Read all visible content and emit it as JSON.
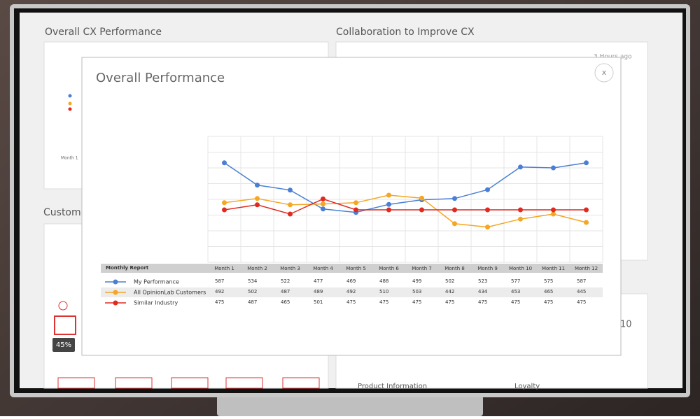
{
  "dashboard": {
    "panel_1_title": "Overall CX Performance",
    "panel_2_title": "Collaboration to Improve CX",
    "panel_3_title": "Custome",
    "mini_month": "Month 1",
    "time_ago": "3 Hours ago",
    "badge": "45%",
    "panel_4_number": "10",
    "panel_5_title": "Product Information",
    "panel_6_title": "Loyalty",
    "close": "x"
  },
  "chart_data": {
    "type": "line",
    "title": "Overall Performance",
    "table_header": "Monthly Report",
    "categories": [
      "Month 1",
      "Month 2",
      "Month 3",
      "Month 4",
      "Month 5",
      "Month 6",
      "Month 7",
      "Month 8",
      "Month 9",
      "Month 10",
      "Month 11",
      "Month 12"
    ],
    "series": [
      {
        "name": "My Performance",
        "color": "#4a7fd4",
        "values": [
          587,
          534,
          522,
          477,
          469,
          488,
          499,
          502,
          523,
          577,
          575,
          587
        ]
      },
      {
        "name": "All OpinionLab Customers",
        "color": "#f5a623",
        "values": [
          492,
          502,
          487,
          489,
          492,
          510,
          503,
          442,
          434,
          453,
          465,
          445
        ]
      },
      {
        "name": "Similar Industry",
        "color": "#e0291f",
        "values": [
          475,
          487,
          465,
          501,
          475,
          475,
          475,
          475,
          475,
          475,
          475,
          475
        ]
      }
    ],
    "ylim": [
      350,
      650
    ],
    "grid": true
  }
}
